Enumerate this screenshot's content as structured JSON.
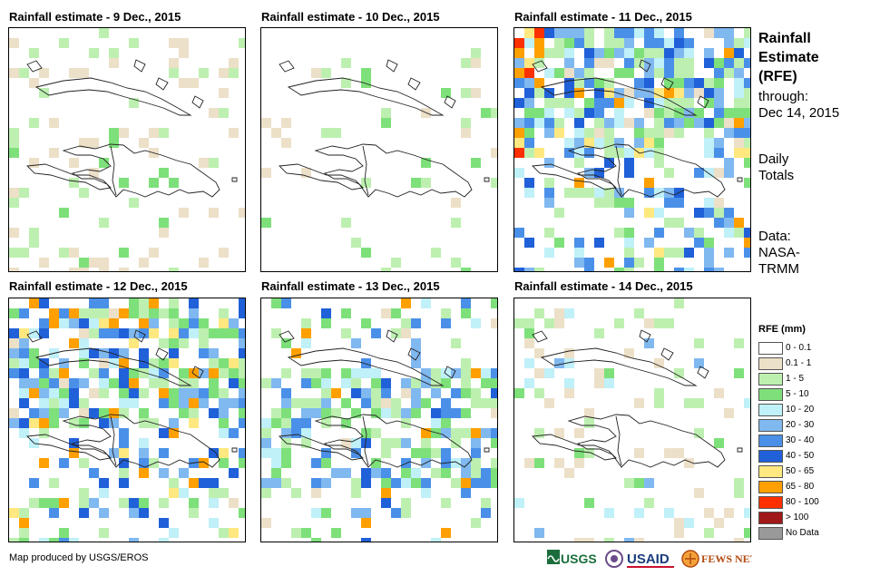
{
  "panels": [
    {
      "title": "Rainfall estimate - 9 Dec., 2015"
    },
    {
      "title": "Rainfall estimate - 10 Dec., 2015"
    },
    {
      "title": "Rainfall estimate - 11 Dec., 2015"
    },
    {
      "title": "Rainfall estimate - 12 Dec., 2015"
    },
    {
      "title": "Rainfall estimate - 13 Dec., 2015"
    },
    {
      "title": "Rainfall estimate - 14 Dec., 2015"
    }
  ],
  "side": {
    "title_lines": [
      "Rainfall",
      "Estimate",
      "(RFE)"
    ],
    "through_lines": [
      "through:",
      "Dec 14, 2015"
    ],
    "totals_lines": [
      "Daily",
      "Totals"
    ],
    "data_lines": [
      "Data:",
      "NASA-",
      "TRMM"
    ]
  },
  "legend": {
    "title": "RFE (mm)",
    "items": [
      {
        "label": "0 - 0.1",
        "color": "#ffffff"
      },
      {
        "label": "0.1 - 1",
        "color": "#ede0c8"
      },
      {
        "label": "1 - 5",
        "color": "#bdf0b0"
      },
      {
        "label": "5 - 10",
        "color": "#7ee07a"
      },
      {
        "label": "10 - 20",
        "color": "#c0f0f8"
      },
      {
        "label": "20 - 30",
        "color": "#80b8f0"
      },
      {
        "label": "30 - 40",
        "color": "#4a90e8"
      },
      {
        "label": "40 - 50",
        "color": "#2060d8"
      },
      {
        "label": "50 - 65",
        "color": "#ffe880"
      },
      {
        "label": "65 - 80",
        "color": "#ffa000"
      },
      {
        "label": "80 - 100",
        "color": "#ff3000"
      },
      {
        "label": "> 100",
        "color": "#a01818"
      },
      {
        "label": "No Data",
        "color": "#999999"
      }
    ]
  },
  "footer": {
    "credit": "Map produced by USGS/EROS"
  },
  "logos": {
    "usgs": "USGS",
    "usaid": "USAID",
    "fewsnet": "FEWS NET"
  }
}
